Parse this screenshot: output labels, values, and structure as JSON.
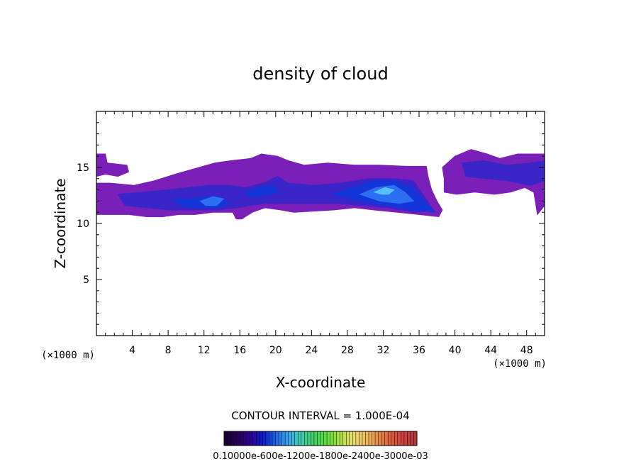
{
  "chart_data": {
    "type": "heatmap",
    "title": "density of cloud",
    "xlabel": "X-coordinate",
    "ylabel": "Z-coordinate",
    "x_unit_left": "(×1000 m)",
    "x_unit_right": "(×1000 m)",
    "xlim": [
      0,
      50
    ],
    "ylim": [
      0,
      20
    ],
    "xticks": [
      4,
      8,
      12,
      16,
      20,
      24,
      28,
      32,
      36,
      40,
      44,
      48
    ],
    "xtick_labels": [
      "4",
      "8",
      "12",
      "16",
      "20",
      "24",
      "28",
      "32",
      "36",
      "40",
      "44",
      "48"
    ],
    "yticks": [
      5,
      10,
      15
    ],
    "ytick_labels": [
      "5",
      "10",
      "15"
    ],
    "contour_interval_text": "CONTOUR INTERVAL = 1.000E-04",
    "colorbar": {
      "range": [
        0.0001,
        0.003
      ],
      "label_text": "0.10000e-600e-1200e-1800e-2400e-3000e-03",
      "colors": [
        "#1a0033",
        "#28005c",
        "#30009a",
        "#0a1ed0",
        "#1e6ae6",
        "#3aa8f0",
        "#40d0b0",
        "#40d060",
        "#60e040",
        "#a8e040",
        "#e8e070",
        "#f0c060",
        "#e89048",
        "#e06040",
        "#d04040",
        "#b03a3a"
      ]
    },
    "fill_levels": [
      {
        "name": "low",
        "color": "#7a1fb8"
      },
      {
        "name": "mid",
        "color": "#3a26c8"
      },
      {
        "name": "high",
        "color": "#1436d8"
      },
      {
        "name": "peak",
        "color": "#2e6ef0"
      },
      {
        "name": "max",
        "color": "#56c0ff"
      }
    ],
    "regions": [
      {
        "level": "low",
        "points": [
          [
            0,
            16.2
          ],
          [
            1,
            16.2
          ],
          [
            1.2,
            15.4
          ],
          [
            3.4,
            15.2
          ],
          [
            3.6,
            14.6
          ],
          [
            2.4,
            14.2
          ],
          [
            1,
            14.4
          ],
          [
            0,
            14.2
          ]
        ]
      },
      {
        "level": "low",
        "points": [
          [
            0,
            13.6
          ],
          [
            1.6,
            13.6
          ],
          [
            4.2,
            13.4
          ],
          [
            6.4,
            13.8
          ],
          [
            8.8,
            14.4
          ],
          [
            11,
            14.9
          ],
          [
            13.2,
            15.4
          ],
          [
            15,
            15.6
          ],
          [
            17.2,
            15.8
          ],
          [
            18.4,
            16.2
          ],
          [
            20.2,
            16
          ],
          [
            21.4,
            15.6
          ],
          [
            23.2,
            15.2
          ],
          [
            25.8,
            15.4
          ],
          [
            28.8,
            15.2
          ],
          [
            31.6,
            15.2
          ],
          [
            34.6,
            15.1
          ],
          [
            36.8,
            15.1
          ],
          [
            37,
            14.2
          ],
          [
            37.4,
            13
          ],
          [
            38,
            12
          ],
          [
            38.6,
            11.2
          ],
          [
            38.2,
            10.6
          ],
          [
            36,
            10.8
          ],
          [
            33.6,
            11
          ],
          [
            31,
            11.2
          ],
          [
            28.8,
            11.4
          ],
          [
            26.4,
            11.2
          ],
          [
            24.2,
            11.1
          ],
          [
            22,
            11
          ],
          [
            20.6,
            11.2
          ],
          [
            18.8,
            11.4
          ],
          [
            17.4,
            11
          ],
          [
            16.2,
            10.4
          ],
          [
            15.6,
            10.4
          ],
          [
            15.2,
            11
          ],
          [
            13,
            11
          ],
          [
            11,
            10.8
          ],
          [
            9.2,
            10.8
          ],
          [
            7.4,
            10.6
          ],
          [
            5.6,
            10.6
          ],
          [
            3.6,
            10.8
          ],
          [
            2,
            10.8
          ],
          [
            0,
            10.8
          ]
        ]
      },
      {
        "level": "low",
        "points": [
          [
            38.6,
            15
          ],
          [
            40,
            16
          ],
          [
            41.8,
            16.6
          ],
          [
            43.6,
            16.2
          ],
          [
            45,
            15.8
          ],
          [
            47,
            16.2
          ],
          [
            50,
            16.2
          ],
          [
            50,
            11.6
          ],
          [
            49.2,
            10.8
          ],
          [
            48.8,
            12.8
          ],
          [
            47.8,
            13.2
          ],
          [
            46.2,
            12.8
          ],
          [
            44.4,
            12.6
          ],
          [
            42.2,
            12.8
          ],
          [
            40.2,
            12.6
          ],
          [
            38.8,
            12.8
          ],
          [
            38.8,
            14
          ]
        ]
      },
      {
        "level": "mid",
        "points": [
          [
            2.4,
            12.6
          ],
          [
            5.2,
            12.8
          ],
          [
            7.8,
            13
          ],
          [
            10.2,
            13.2
          ],
          [
            12.6,
            13.4
          ],
          [
            14.8,
            13.4
          ],
          [
            16.6,
            13.2
          ],
          [
            18.6,
            13.6
          ],
          [
            20.2,
            14.2
          ],
          [
            21.4,
            13.6
          ],
          [
            24.2,
            13.4
          ],
          [
            27.2,
            13.6
          ],
          [
            30.4,
            14
          ],
          [
            33.2,
            14
          ],
          [
            35.4,
            13.8
          ],
          [
            36.6,
            12.4
          ],
          [
            37.6,
            11.2
          ],
          [
            35.6,
            11
          ],
          [
            32.6,
            11.4
          ],
          [
            29.6,
            11.6
          ],
          [
            26.8,
            11.8
          ],
          [
            24,
            11.8
          ],
          [
            21.4,
            11.8
          ],
          [
            19,
            11.8
          ],
          [
            17,
            11.6
          ],
          [
            15.8,
            11.4
          ],
          [
            13.4,
            11.2
          ],
          [
            10.8,
            11.2
          ],
          [
            8.2,
            11.2
          ],
          [
            5.6,
            11.4
          ],
          [
            3.2,
            11.6
          ]
        ]
      },
      {
        "level": "mid",
        "points": [
          [
            40.8,
            15.4
          ],
          [
            43.2,
            15.6
          ],
          [
            45.8,
            15.2
          ],
          [
            48.4,
            15.4
          ],
          [
            50,
            15.6
          ],
          [
            50,
            13.8
          ],
          [
            48.4,
            13.4
          ],
          [
            46,
            13.8
          ],
          [
            43.4,
            14
          ],
          [
            41.2,
            14.2
          ]
        ]
      },
      {
        "level": "high",
        "points": [
          [
            8.4,
            12.2
          ],
          [
            10.4,
            12.2
          ],
          [
            12.2,
            12.4
          ],
          [
            13.8,
            12.4
          ],
          [
            14.8,
            11.8
          ],
          [
            13.6,
            11.4
          ],
          [
            11.4,
            11.4
          ],
          [
            9.4,
            11.6
          ]
        ]
      },
      {
        "level": "high",
        "points": [
          [
            26.4,
            12.6
          ],
          [
            28.6,
            13.2
          ],
          [
            31,
            13.8
          ],
          [
            33.4,
            13.8
          ],
          [
            35.2,
            13.2
          ],
          [
            36.8,
            11.8
          ],
          [
            37.8,
            11
          ],
          [
            35.4,
            11.2
          ],
          [
            32.4,
            11.6
          ],
          [
            29.4,
            12
          ]
        ]
      },
      {
        "level": "high",
        "points": [
          [
            16.6,
            12.8
          ],
          [
            18.2,
            13.2
          ],
          [
            19.8,
            13.4
          ],
          [
            20.2,
            12.8
          ],
          [
            18.6,
            12.4
          ],
          [
            17,
            12.4
          ]
        ]
      },
      {
        "level": "peak",
        "points": [
          [
            29.4,
            12.6
          ],
          [
            31.2,
            13.2
          ],
          [
            33.2,
            13.4
          ],
          [
            34.4,
            12.8
          ],
          [
            35.4,
            12
          ],
          [
            33.8,
            11.8
          ],
          [
            31.6,
            12
          ]
        ]
      },
      {
        "level": "peak",
        "points": [
          [
            11.6,
            12
          ],
          [
            13,
            12.4
          ],
          [
            14.2,
            12.2
          ],
          [
            13.4,
            11.6
          ],
          [
            12.2,
            11.6
          ]
        ]
      },
      {
        "level": "max",
        "points": [
          [
            31,
            12.8
          ],
          [
            32.2,
            13.2
          ],
          [
            33.2,
            13
          ],
          [
            32.6,
            12.6
          ],
          [
            31.8,
            12.6
          ]
        ]
      }
    ]
  }
}
